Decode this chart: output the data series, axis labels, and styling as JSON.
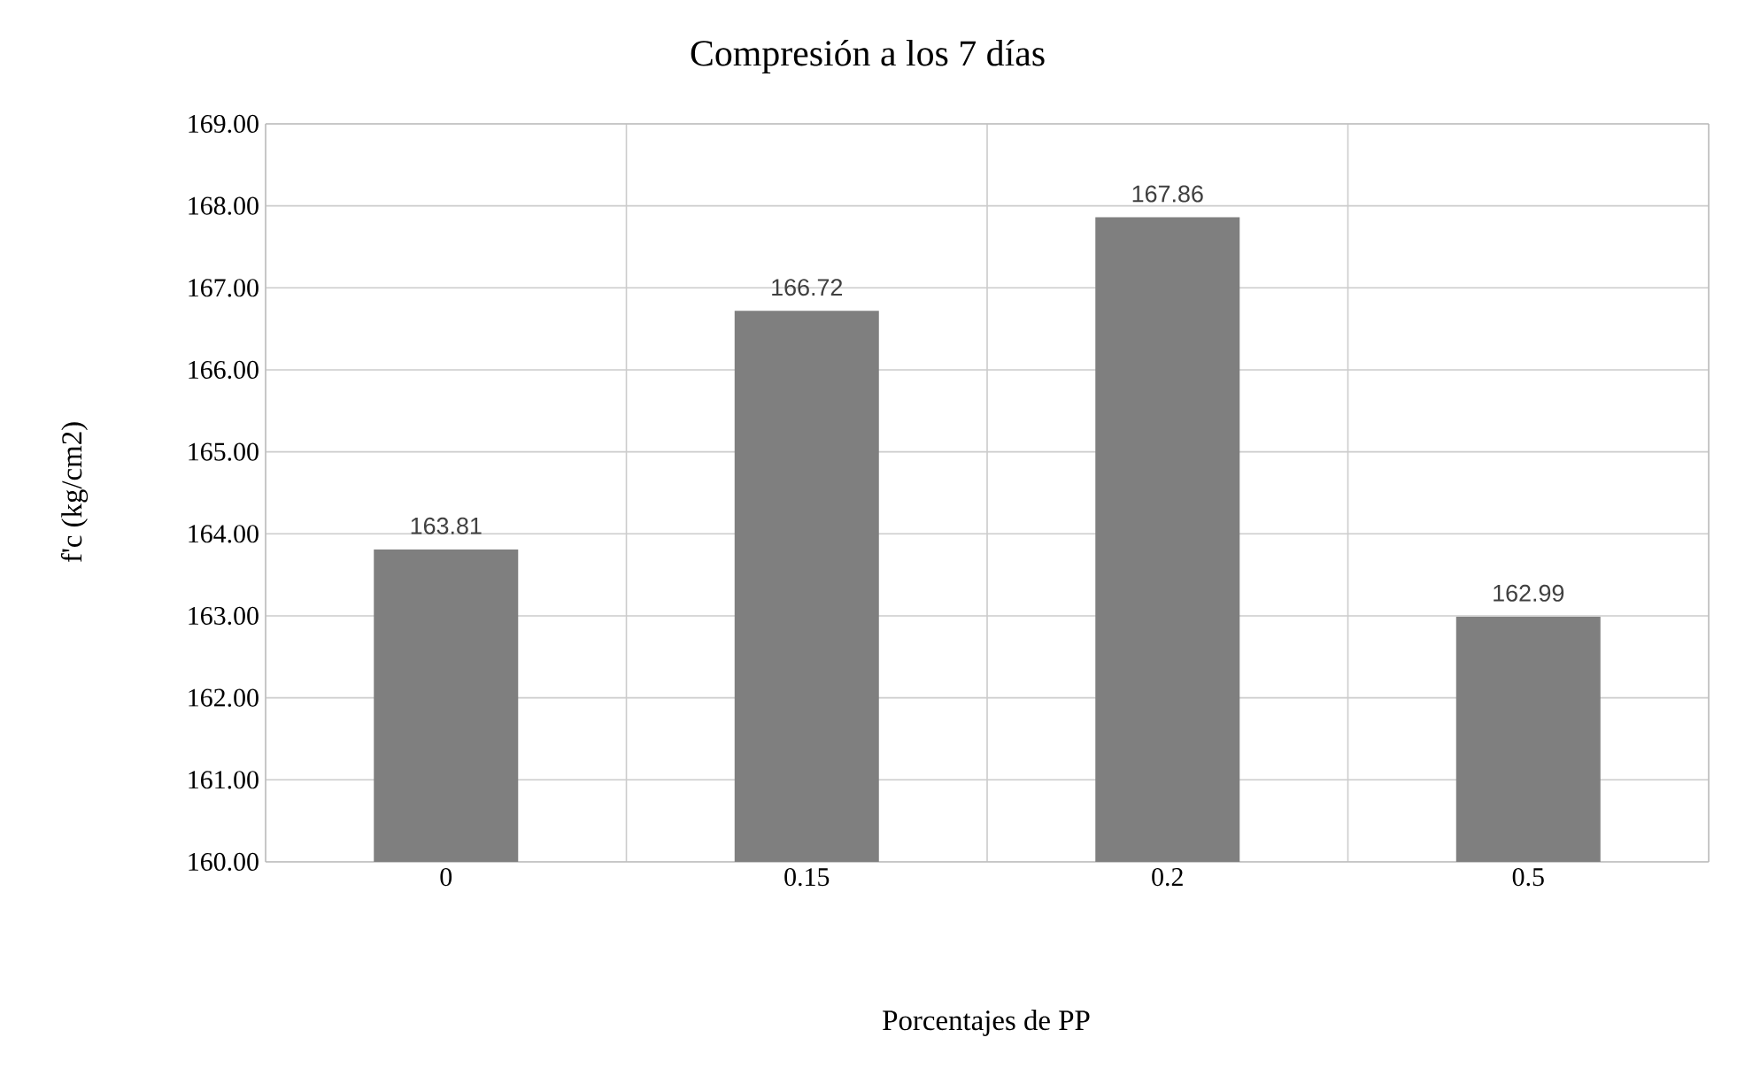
{
  "chart_data": {
    "type": "bar",
    "title": "Compresión a los 7 días",
    "xlabel": "Porcentajes de PP",
    "ylabel": "f'c  (kg/cm2)",
    "categories": [
      "0",
      "0.15",
      "0.2",
      "0.5"
    ],
    "values": [
      163.81,
      166.72,
      167.86,
      162.99
    ],
    "color": "#7f7f7f",
    "ylim": [
      160,
      169
    ],
    "yticks": [
      {
        "value": 160,
        "label": "160.00"
      },
      {
        "value": 161,
        "label": "161.00"
      },
      {
        "value": 162,
        "label": "162.00"
      },
      {
        "value": 163,
        "label": "163.00"
      },
      {
        "value": 164,
        "label": "164.00"
      },
      {
        "value": 165,
        "label": "165.00"
      },
      {
        "value": 166,
        "label": "166.00"
      },
      {
        "value": 167,
        "label": "167.00"
      },
      {
        "value": 168,
        "label": "168.00"
      },
      {
        "value": 169,
        "label": "169.00"
      }
    ],
    "grid": true,
    "data_labels": true
  }
}
